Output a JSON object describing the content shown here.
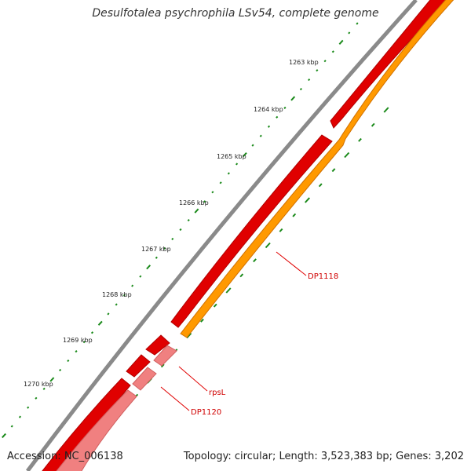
{
  "title": "Desulfotalea psychrophila LSv54, complete genome",
  "footer": {
    "accession": "Accession: NC_006138",
    "info": "Topology: circular; Length: 3,523,383 bp; Genes: 3,202"
  },
  "scale_labels": [
    "1263 kbp",
    "1264 kbp",
    "1265 kbp",
    "1266 kbp",
    "1267 kbp",
    "1268 kbp",
    "1269 kbp",
    "1270 kbp"
  ],
  "gene_labels": [
    "DP1118",
    "rpsL",
    "DP1120"
  ],
  "colors": {
    "backbone": "#808080",
    "forward_cds": "#e00000",
    "reverse_cds": "#ff9900",
    "rna": "#f08080",
    "tick": "#1a8a1a",
    "label_line": "#e00000"
  }
}
